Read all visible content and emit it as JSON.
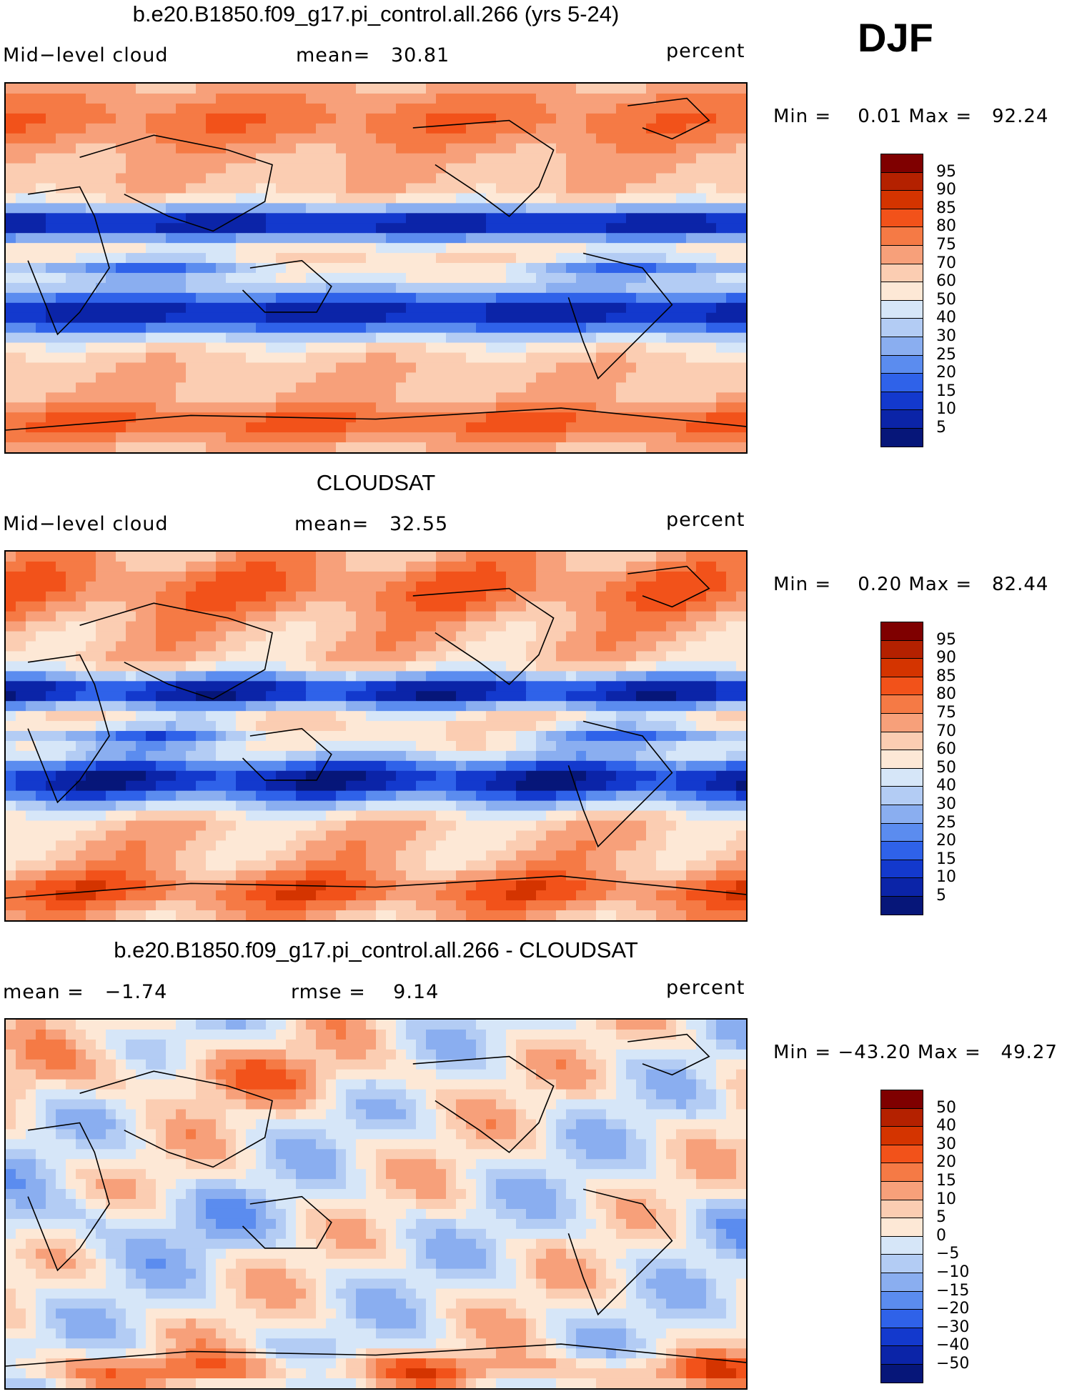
{
  "season": "DJF",
  "panels": [
    {
      "title": "b.e20.B1850.f09_g17.pi_control.all.266 (yrs 5-24)",
      "left_label": "Mid−level cloud",
      "center_label": "mean=   30.81",
      "right_label": "percent",
      "min_max": "Min =    0.01 Max =   92.24",
      "colorbar": {
        "labels": [
          "95",
          "90",
          "85",
          "80",
          "75",
          "70",
          "60",
          "50",
          "40",
          "30",
          "25",
          "20",
          "15",
          "10",
          "5"
        ],
        "colors": [
          "#7f0000",
          "#b42100",
          "#d43400",
          "#f2521a",
          "#f57a45",
          "#f7a07a",
          "#fbcdb2",
          "#fde8d6",
          "#d6e6f8",
          "#b3ccf4",
          "#8aaef0",
          "#5b8cef",
          "#2f62e9",
          "#1339cd",
          "#0b24a8",
          "#061679"
        ]
      },
      "field": "model"
    },
    {
      "title": "CLOUDSAT",
      "left_label": "Mid−level cloud",
      "center_label": "mean=   32.55",
      "right_label": "percent",
      "min_max": "Min =    0.20 Max =   82.44",
      "colorbar": {
        "labels": [
          "95",
          "90",
          "85",
          "80",
          "75",
          "70",
          "60",
          "50",
          "40",
          "30",
          "25",
          "20",
          "15",
          "10",
          "5"
        ],
        "colors": [
          "#7f0000",
          "#b42100",
          "#d43400",
          "#f2521a",
          "#f57a45",
          "#f7a07a",
          "#fbcdb2",
          "#fde8d6",
          "#d6e6f8",
          "#b3ccf4",
          "#8aaef0",
          "#5b8cef",
          "#2f62e9",
          "#1339cd",
          "#0b24a8",
          "#061679"
        ]
      },
      "field": "obs"
    },
    {
      "title": "b.e20.B1850.f09_g17.pi_control.all.266 - CLOUDSAT",
      "left_label": "mean =   −1.74",
      "center_label": "rmse =    9.14",
      "right_label": "percent",
      "min_max": "Min = −43.20 Max =   49.27",
      "colorbar": {
        "labels": [
          "50",
          "40",
          "30",
          "20",
          "15",
          "10",
          "5",
          "0",
          "−5",
          "−10",
          "−15",
          "−20",
          "−30",
          "−40",
          "−50"
        ],
        "colors": [
          "#7f0000",
          "#b42100",
          "#d43400",
          "#f2521a",
          "#f57a45",
          "#f7a07a",
          "#fbcdb2",
          "#fde8d6",
          "#d6e6f8",
          "#b3ccf4",
          "#8aaef0",
          "#5b8cef",
          "#2f62e9",
          "#1339cd",
          "#0b24a8",
          "#061679"
        ]
      },
      "field": "diff"
    }
  ]
}
